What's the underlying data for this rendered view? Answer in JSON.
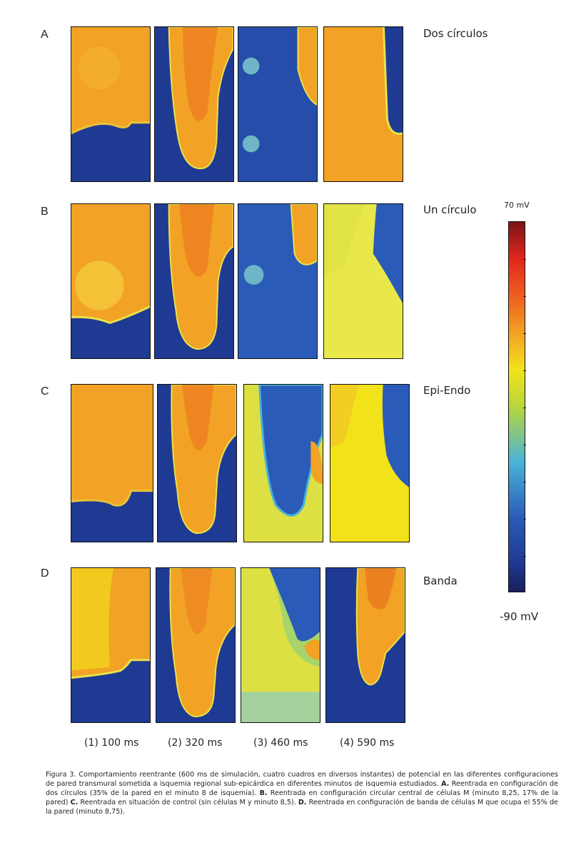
{
  "rows": [
    {
      "letter": "A",
      "label": "Dos círculos"
    },
    {
      "letter": "B",
      "label": "Un círculo"
    },
    {
      "letter": "C",
      "label": "Epi-Endo"
    },
    {
      "letter": "D",
      "label": "Banda"
    }
  ],
  "times": [
    "(1) 100 ms",
    "(2) 320 ms",
    "(3) 460 ms",
    "(4) 590 ms"
  ],
  "colorbar": {
    "max_label": "70 mV",
    "min_label": "-90 mV"
  },
  "colors": {
    "dark_blue": "#1f3a93",
    "blue": "#2a5bb8",
    "cyan": "#49b3d8",
    "yellow": "#f2e21a",
    "light_yellow": "#e8e84a",
    "orange": "#f2a224",
    "dark_orange": "#e9731f",
    "red": "#e3261d",
    "dark_red": "#7a1416"
  },
  "caption": {
    "fig": "Figura 3.",
    "text1": " Comportamiento reentrante (600 ms de simulación, cuatro cuadros en diversos instantes) de potencial en las diferentes configuraciones de pared transmural sometida a isquemia regional sub-epicárdica en diferentes minutos de isquemia estudiados. ",
    "a": "A.",
    "text_a": " Reentrada en configuración de dos círculos (35% de la pared en el minuto 8 de isquemia). ",
    "b": "B.",
    "text_b": " Reentrada en configuración circular central de células M (minuto 8,25, 17% de la pared) ",
    "c": "C.",
    "text_c": " Reentrada en situación de control (sin células M y minuto 8,5). ",
    "d": "D.",
    "text_d": " Reentrada en configuración de banda de células M que ocupa el 55% de la pared (minuto 8,75)."
  }
}
